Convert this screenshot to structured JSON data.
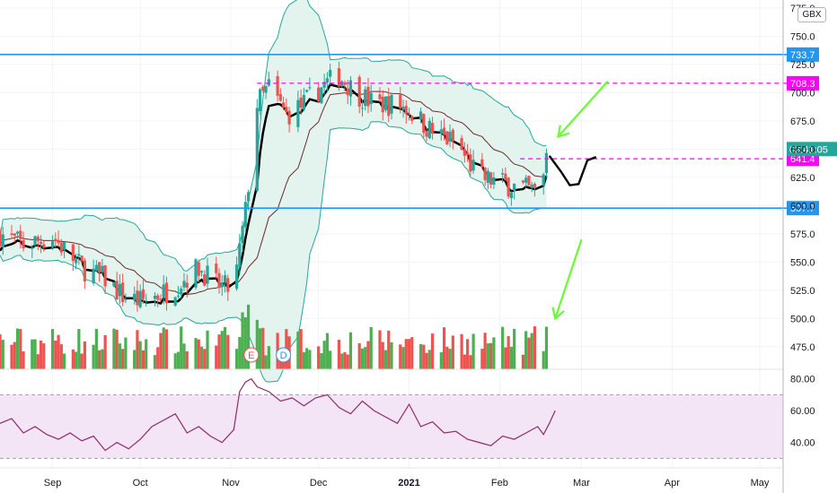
{
  "currency_label": "GBX",
  "colors": {
    "up": "#26a69a",
    "up_vol": "#4caf50",
    "down": "#ef5350",
    "level_line": "#2196f3",
    "dashed_level": "#ff00ff",
    "arrow": "#66ff33",
    "band_fill": "#e3f4ef",
    "band_line": "#26a69a",
    "rsi_line": "#8e2a6a",
    "rsi_band": "#f3e5f5",
    "ma_line": "#6d2a2a",
    "projection": "#000000"
  },
  "chart_data": {
    "type": "candlestick",
    "price_axis": {
      "ticks": [
        475,
        500,
        525,
        550,
        575,
        600,
        625,
        650,
        675,
        700,
        725,
        750,
        775
      ],
      "tick_labels": [
        "475.0",
        "500.0",
        "525.0",
        "550.0",
        "575.0",
        "600.0",
        "625.0",
        "650.0",
        "675.0",
        "700.0",
        "725.0",
        "750.0",
        "775.0"
      ],
      "range": [
        455,
        782
      ]
    },
    "rsi_axis": {
      "ticks": [
        40,
        60,
        80
      ],
      "tick_labels": [
        "40.00",
        "60.00",
        "80.00"
      ],
      "range": [
        24,
        86
      ],
      "band": [
        30,
        70
      ]
    },
    "time_axis": {
      "labels": [
        "Sep",
        "Oct",
        "Nov",
        "Dec",
        "2021",
        "Feb",
        "Mar",
        "Apr",
        "May"
      ],
      "label_days": [
        0,
        30,
        61,
        91,
        122,
        153,
        181,
        212,
        242
      ],
      "range_days": [
        -18,
        250
      ]
    },
    "levels": [
      {
        "value": 733.7,
        "label": "733.7",
        "style": "solid",
        "color": "#2196f3"
      },
      {
        "value": 597.7,
        "label": "597.7",
        "style": "solid",
        "color": "#2196f3"
      },
      {
        "value": 708.3,
        "label": "708.3",
        "style": "dashed",
        "color": "#ff00ff"
      },
      {
        "value": 641.4,
        "label": "641.4",
        "style": "dashed",
        "color": "#ff00ff"
      }
    ],
    "current_price": {
      "value": 650.0,
      "label": "03:41:05"
    },
    "events": [
      {
        "day": 68,
        "letter": "E",
        "color": "#ef5350"
      },
      {
        "day": 79,
        "letter": "D",
        "color": "#2196f3"
      }
    ],
    "projection_path": [
      [
        170,
        644
      ],
      [
        174,
        630
      ],
      [
        177,
        618
      ],
      [
        180,
        619
      ],
      [
        183,
        640
      ],
      [
        186,
        643
      ]
    ],
    "rsi_points": [
      [
        -18,
        52
      ],
      [
        -14,
        55
      ],
      [
        -10,
        46
      ],
      [
        -6,
        50
      ],
      [
        -2,
        45
      ],
      [
        2,
        42
      ],
      [
        6,
        46
      ],
      [
        10,
        41
      ],
      [
        14,
        44
      ],
      [
        18,
        35
      ],
      [
        22,
        40
      ],
      [
        26,
        36
      ],
      [
        30,
        42
      ],
      [
        34,
        50
      ],
      [
        38,
        54
      ],
      [
        42,
        58
      ],
      [
        46,
        46
      ],
      [
        50,
        50
      ],
      [
        54,
        44
      ],
      [
        58,
        40
      ],
      [
        62,
        48
      ],
      [
        64,
        72
      ],
      [
        66,
        78
      ],
      [
        68,
        80
      ],
      [
        70,
        75
      ],
      [
        74,
        72
      ],
      [
        78,
        66
      ],
      [
        82,
        68
      ],
      [
        86,
        63
      ],
      [
        90,
        68
      ],
      [
        94,
        70
      ],
      [
        98,
        62
      ],
      [
        102,
        58
      ],
      [
        106,
        66
      ],
      [
        110,
        60
      ],
      [
        114,
        56
      ],
      [
        118,
        52
      ],
      [
        122,
        64
      ],
      [
        126,
        50
      ],
      [
        130,
        53
      ],
      [
        134,
        46
      ],
      [
        138,
        47
      ],
      [
        142,
        42
      ],
      [
        146,
        40
      ],
      [
        150,
        38
      ],
      [
        154,
        44
      ],
      [
        158,
        42
      ],
      [
        162,
        46
      ],
      [
        166,
        50
      ],
      [
        168,
        45
      ],
      [
        170,
        52
      ],
      [
        172,
        60
      ]
    ]
  }
}
